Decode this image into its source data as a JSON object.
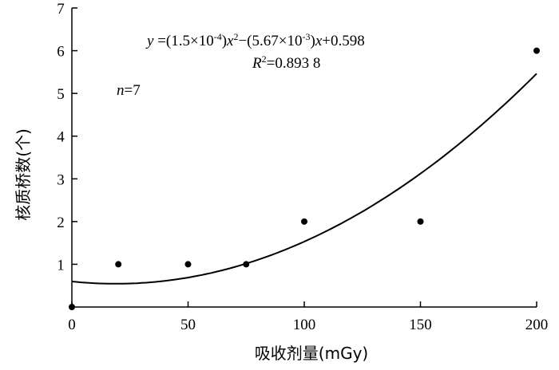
{
  "chart_data": {
    "type": "scatter",
    "xlabel": "吸收剂量(mGy)",
    "ylabel": "核质桥数(个)",
    "xlim": [
      0,
      200
    ],
    "ylim": [
      0,
      7
    ],
    "xticks": [
      0,
      50,
      100,
      150,
      200
    ],
    "yticks": [
      1,
      2,
      3,
      4,
      5,
      6,
      7
    ],
    "x_tick_labels": [
      "0",
      "50",
      "100",
      "150",
      "200"
    ],
    "y_tick_labels": [
      "1",
      "2",
      "3",
      "4",
      "5",
      "6",
      "7"
    ],
    "points": {
      "x": [
        0,
        20,
        50,
        75,
        100,
        150,
        200
      ],
      "y": [
        0,
        1,
        1,
        1,
        2,
        2,
        6
      ]
    },
    "fit": {
      "type": "quadratic",
      "a": 0.00015,
      "b": -0.00567,
      "c": 0.598
    },
    "annotations": {
      "equation": {
        "y": "y",
        "eq_open": " =(1.5×10",
        "exp1": "-4",
        "close1": ")",
        "x1": "x",
        "sq": "2",
        "mid": "−(5.67×10",
        "exp2": "-3",
        "close2": ")",
        "x2": "x",
        "tail": "+0.598"
      },
      "r2": {
        "R": "R",
        "sup": "2",
        "value": "=0.893 8"
      },
      "n": {
        "n": "n",
        "value": "=7"
      }
    },
    "grid": false,
    "legend": "none"
  }
}
